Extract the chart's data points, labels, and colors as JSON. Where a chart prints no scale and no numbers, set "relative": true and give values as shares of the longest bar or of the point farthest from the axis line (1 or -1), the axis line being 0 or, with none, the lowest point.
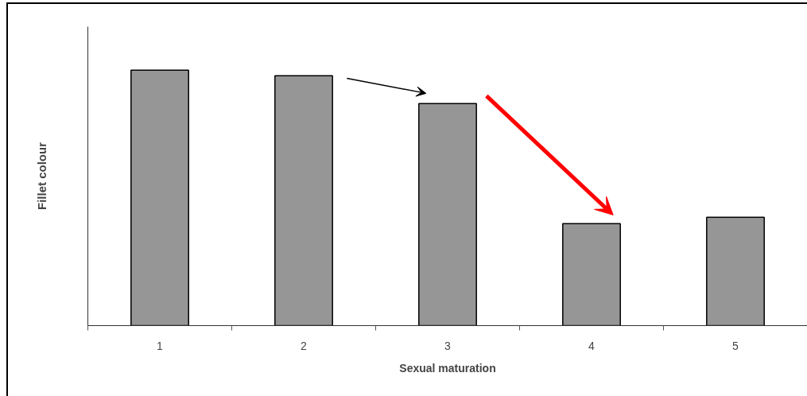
{
  "chart_data": {
    "type": "bar",
    "relative": true,
    "xlabel": "Sexual maturation",
    "ylabel": "Fillet colour",
    "categories": [
      "1",
      "2",
      "3",
      "4",
      "5"
    ],
    "values": [
      1,
      0.978,
      0.869,
      0.399,
      0.424
    ],
    "color": "#969696",
    "grid": false
  }
}
